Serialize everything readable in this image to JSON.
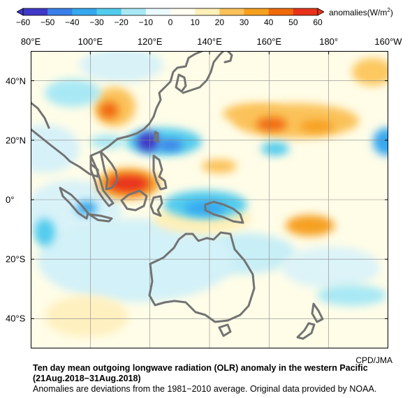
{
  "colorbar": {
    "ticks": [
      "−60",
      "−50",
      "−40",
      "−30",
      "−20",
      "−10",
      "0",
      "10",
      "20",
      "30",
      "40",
      "50",
      "60"
    ],
    "unit_label": "anomalies(W/m",
    "unit_sup": "2",
    "unit_close": ")",
    "colors": [
      "#3f38c8",
      "#3a7fe8",
      "#35a8f0",
      "#52ccee",
      "#a8e8f5",
      "#eafbff",
      "#fffdf0",
      "#fff0b8",
      "#fbc25a",
      "#f6a020",
      "#f06a0a",
      "#e8321a"
    ]
  },
  "axes": {
    "lon_labels": [
      "80°E",
      "100°E",
      "120°E",
      "140°E",
      "160°E",
      "180°",
      "160°W"
    ],
    "lat_labels": [
      "40°N",
      "20°N",
      "0°",
      "20°S",
      "40°S"
    ],
    "lon_range": [
      80,
      200
    ],
    "lat_range": [
      -50,
      50
    ]
  },
  "credit": "CPD/JMA",
  "caption": {
    "title": "Ten day mean outgoing longwave radiation (OLR) anomaly in the western Pacific",
    "period": "(21Aug.2018−31Aug.2018)",
    "note": "Anomalies are deviations from the 1981−2010 average. Original data provided by NOAA."
  },
  "anomaly_features": [
    {
      "label": "negative",
      "lon": 118,
      "lat": 20,
      "value": -55
    },
    {
      "label": "positive",
      "lon": 112,
      "lat": 7,
      "value": 45
    },
    {
      "label": "positive",
      "lon": 162,
      "lat": 25,
      "value": 30
    },
    {
      "label": "positive",
      "lon": 103,
      "lat": 31,
      "value": 30
    },
    {
      "label": "negative",
      "lon": 148,
      "lat": -6,
      "value": -25
    }
  ]
}
